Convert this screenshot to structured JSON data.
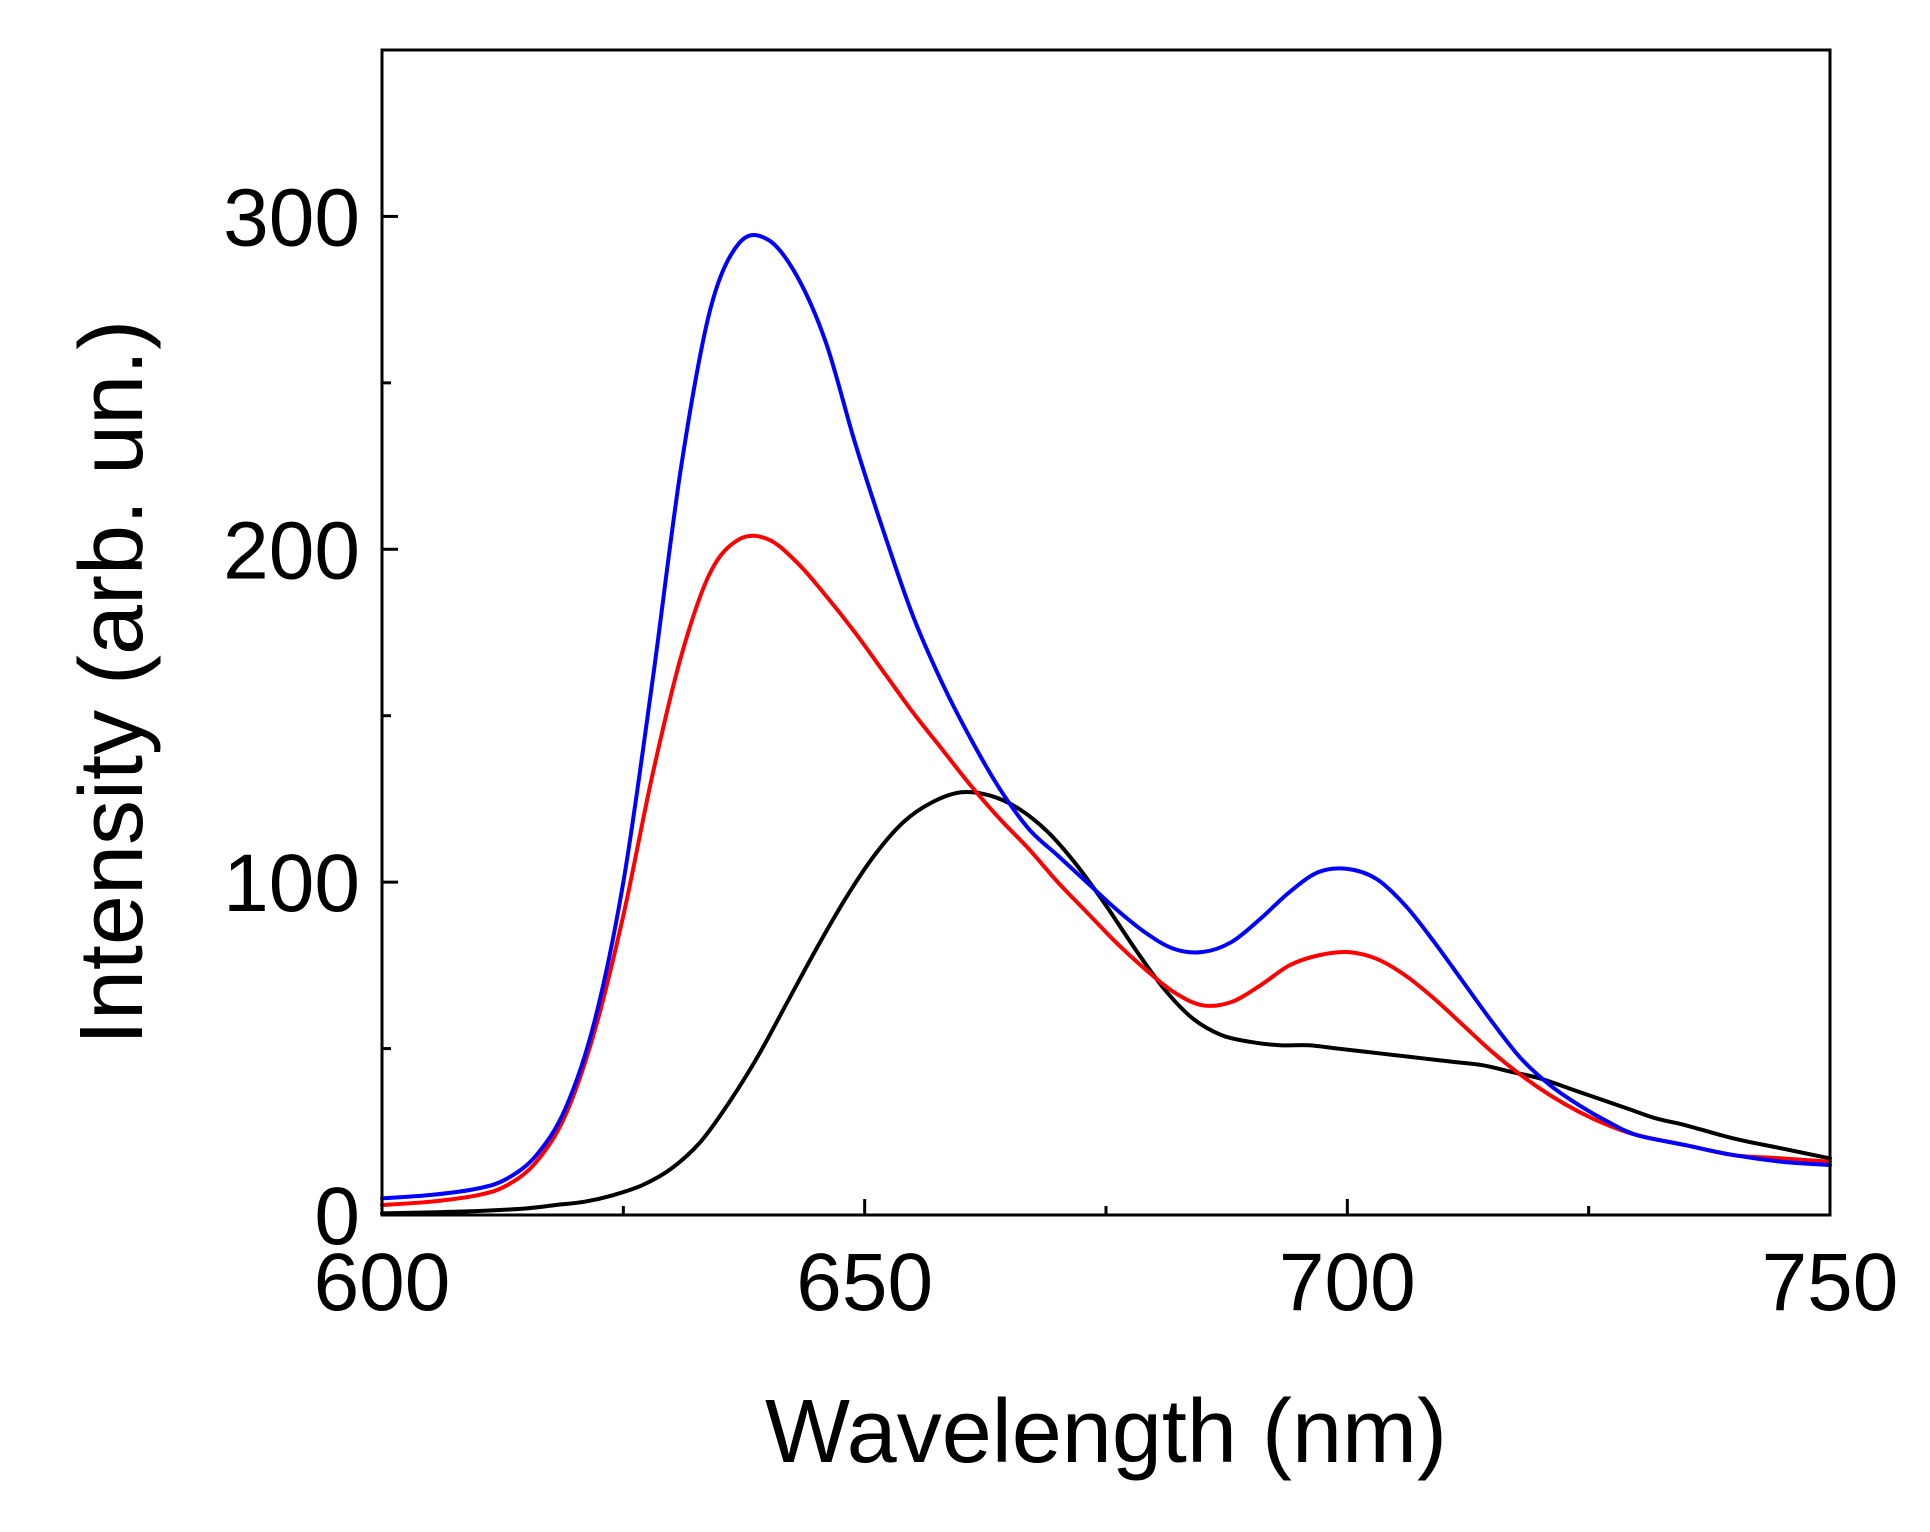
{
  "chart_data": {
    "type": "line",
    "title": "",
    "xlabel": "Wavelength (nm)",
    "ylabel": "Intensity (arb. un.)",
    "xlim": [
      600,
      750
    ],
    "ylim": [
      0,
      350
    ],
    "xticks": [
      600,
      650,
      700,
      750
    ],
    "xtick_labels": [
      "600",
      "650",
      "700",
      "750"
    ],
    "xminor": [
      625,
      675,
      725
    ],
    "yticks": [
      0,
      100,
      200,
      300
    ],
    "ytick_labels": [
      "0",
      "100",
      "200",
      "300"
    ],
    "yminor": [
      50,
      150,
      250
    ],
    "grid": false,
    "legend": "none",
    "series": [
      {
        "name": "blue",
        "color": "#0000ff",
        "x": [
          600,
          605,
          610,
          613,
          616,
          619,
          622,
          625,
          628,
          631,
          634,
          637,
          640,
          643,
          646,
          649,
          652,
          655,
          658,
          661,
          664,
          667,
          670,
          673,
          676,
          679,
          682,
          685,
          688,
          691,
          694,
          697,
          700,
          703,
          706,
          709,
          712,
          715,
          718,
          721,
          724,
          727,
          730,
          735,
          740,
          745,
          750
        ],
        "values": [
          5,
          6,
          8,
          11,
          18,
          32,
          58,
          100,
          160,
          225,
          272,
          292,
          293,
          282,
          262,
          232,
          205,
          180,
          160,
          143,
          128,
          116,
          108,
          100,
          92,
          85,
          80,
          79,
          82,
          89,
          97,
          103,
          104,
          101,
          93,
          82,
          70,
          58,
          47,
          39,
          33,
          28,
          24,
          21,
          18,
          16,
          15
        ]
      },
      {
        "name": "red",
        "color": "#ff0000",
        "x": [
          600,
          605,
          610,
          613,
          616,
          619,
          622,
          625,
          628,
          631,
          634,
          637,
          640,
          643,
          646,
          649,
          652,
          655,
          658,
          661,
          664,
          667,
          670,
          673,
          676,
          679,
          682,
          685,
          688,
          691,
          694,
          697,
          700,
          703,
          706,
          709,
          712,
          715,
          718,
          721,
          724,
          727,
          730,
          735,
          740,
          745,
          750
        ],
        "values": [
          3,
          4,
          6,
          9,
          16,
          30,
          55,
          90,
          132,
          168,
          193,
          203,
          203,
          196,
          186,
          175,
          163,
          151,
          140,
          129,
          119,
          110,
          100,
          91,
          82,
          74,
          67,
          63,
          64,
          69,
          75,
          78,
          79,
          77,
          72,
          65,
          57,
          49,
          42,
          36,
          31,
          27,
          24,
          21,
          18,
          17,
          16
        ]
      },
      {
        "name": "black",
        "color": "#000000",
        "x": [
          600,
          605,
          610,
          615,
          618,
          621,
          624,
          627,
          630,
          633,
          636,
          639,
          642,
          645,
          648,
          651,
          654,
          657,
          660,
          663,
          666,
          669,
          672,
          675,
          678,
          681,
          684,
          687,
          690,
          693,
          696,
          699,
          702,
          705,
          708,
          711,
          714,
          717,
          720,
          723,
          726,
          729,
          732,
          735,
          740,
          745,
          750
        ],
        "values": [
          0.5,
          0.8,
          1.2,
          2,
          3,
          4,
          6,
          9,
          14,
          22,
          34,
          48,
          64,
          80,
          95,
          108,
          118,
          124,
          127,
          126,
          122,
          115,
          105,
          93,
          80,
          68,
          59,
          54,
          52,
          51,
          51,
          50,
          49,
          48,
          47,
          46,
          45,
          43,
          41,
          38,
          35,
          32,
          29,
          27,
          23,
          20,
          17
        ]
      }
    ]
  }
}
